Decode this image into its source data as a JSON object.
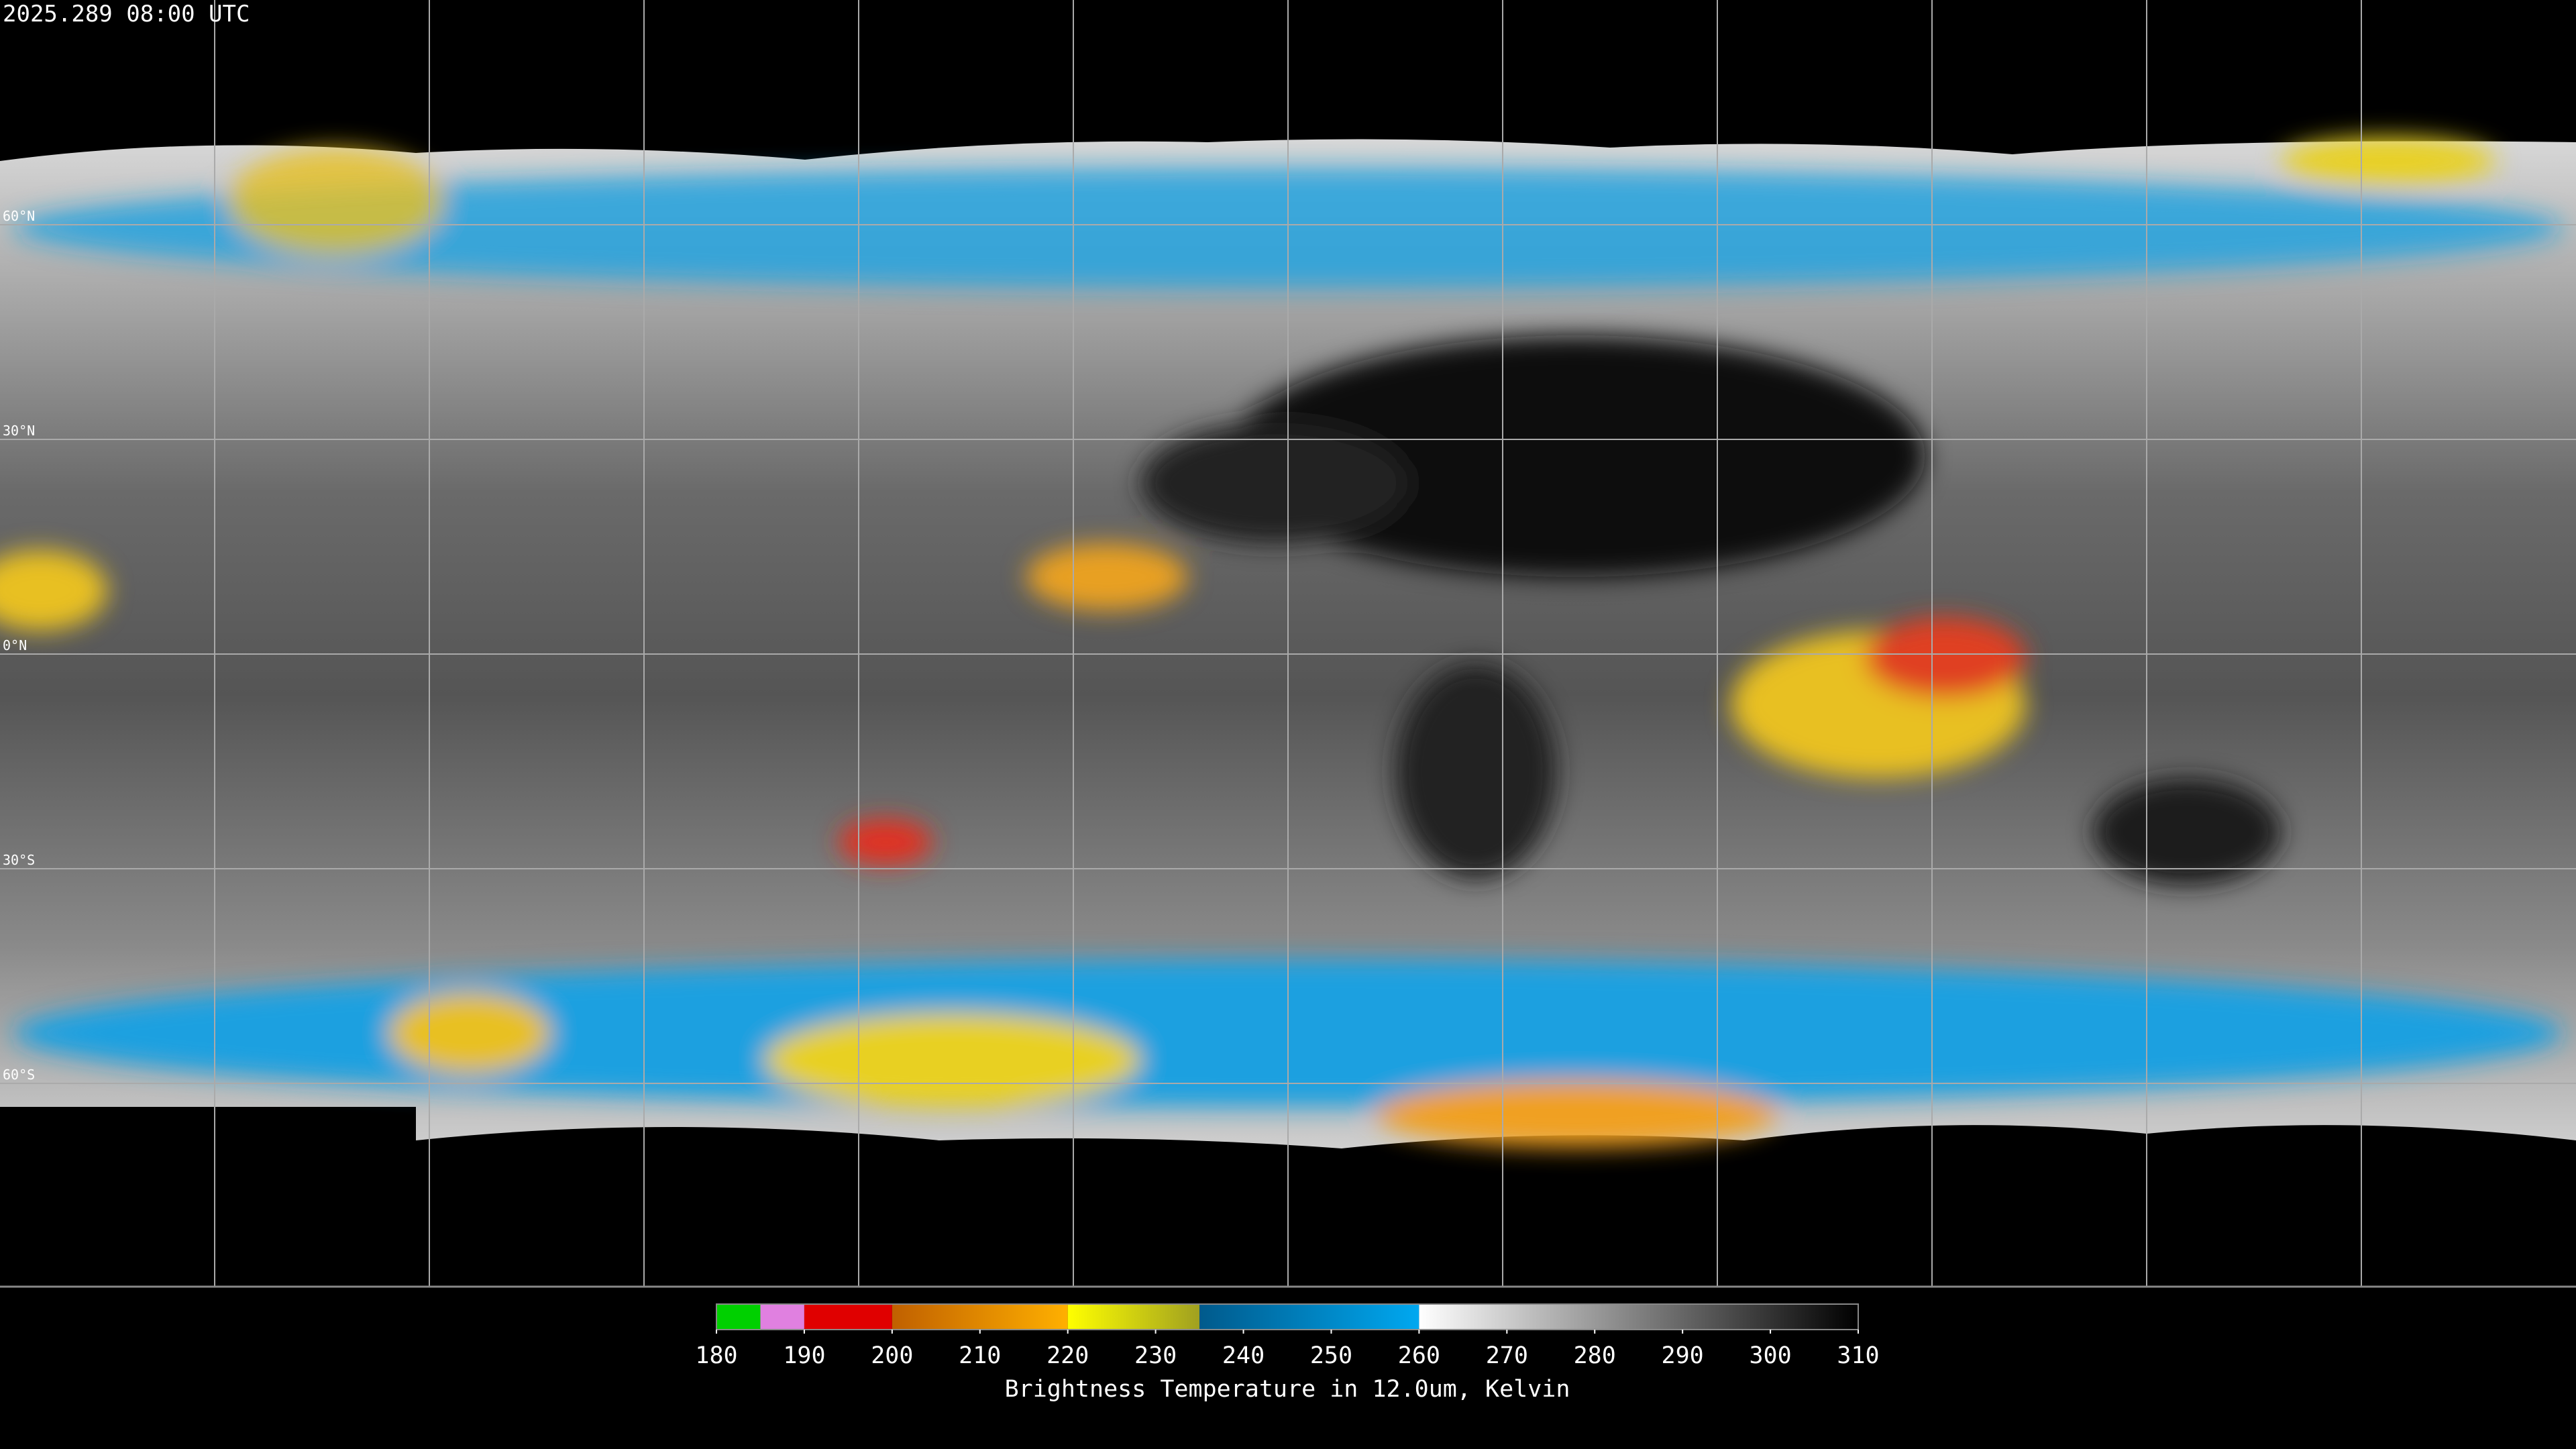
{
  "header": {
    "timestamp": "2025.289 08:00 UTC"
  },
  "map": {
    "lat_labels": [
      "60°N",
      "30°N",
      "0°N",
      "30°S",
      "60°S"
    ]
  },
  "colorbar": {
    "label": "Brightness Temperature in 12.0um, Kelvin",
    "range": [
      180,
      310
    ],
    "ticks": [
      180,
      190,
      200,
      210,
      220,
      230,
      240,
      250,
      260,
      270,
      280,
      290,
      300,
      310
    ],
    "segments": [
      {
        "from": 180,
        "to": 185,
        "colors": [
          "#00d000",
          "#00d000"
        ]
      },
      {
        "from": 185,
        "to": 190,
        "colors": [
          "#e080e0",
          "#e080e0"
        ]
      },
      {
        "from": 190,
        "to": 200,
        "colors": [
          "#e00000",
          "#e00000"
        ]
      },
      {
        "from": 200,
        "to": 220,
        "colors": [
          "#c06000",
          "#ffb000"
        ]
      },
      {
        "from": 220,
        "to": 235,
        "colors": [
          "#ffff00",
          "#a0a020"
        ]
      },
      {
        "from": 235,
        "to": 260,
        "colors": [
          "#005a8c",
          "#00a8f0"
        ]
      },
      {
        "from": 260,
        "to": 310,
        "colors": [
          "#ffffff",
          "#000000"
        ]
      }
    ]
  }
}
